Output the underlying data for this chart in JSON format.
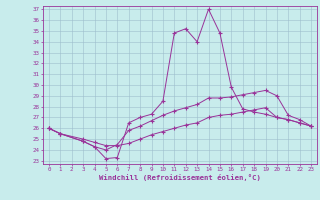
{
  "xlabel": "Windchill (Refroidissement éolien,°C)",
  "background_color": "#c8ecec",
  "grid_color": "#9ebecc",
  "line_color": "#993399",
  "xmin": 0,
  "xmax": 23,
  "ymin": 23,
  "ymax": 37,
  "line1_x": [
    0,
    1,
    3,
    4,
    5,
    6,
    7,
    8,
    9,
    10,
    11,
    12,
    13,
    14,
    15,
    16,
    17,
    18,
    19,
    20,
    21,
    22,
    23
  ],
  "line1_y": [
    26.0,
    25.5,
    24.8,
    24.3,
    23.2,
    23.3,
    26.5,
    27.0,
    27.3,
    28.5,
    34.8,
    35.2,
    34.0,
    37.0,
    34.8,
    29.8,
    27.8,
    27.5,
    27.3,
    27.0,
    26.8,
    26.5,
    26.2
  ],
  "line2_x": [
    0,
    1,
    3,
    4,
    5,
    6,
    7,
    8,
    9,
    10,
    11,
    12,
    13,
    14,
    15,
    16,
    17,
    18,
    19,
    20,
    21,
    22,
    23
  ],
  "line2_y": [
    26.0,
    25.5,
    24.8,
    24.3,
    24.0,
    24.5,
    25.8,
    26.2,
    26.7,
    27.2,
    27.6,
    27.9,
    28.2,
    28.8,
    28.8,
    28.9,
    29.1,
    29.3,
    29.5,
    29.0,
    27.2,
    26.8,
    26.2
  ],
  "line3_x": [
    0,
    1,
    3,
    4,
    5,
    6,
    7,
    8,
    9,
    10,
    11,
    12,
    13,
    14,
    15,
    16,
    17,
    18,
    19,
    20,
    21,
    22,
    23
  ],
  "line3_y": [
    26.0,
    25.5,
    25.0,
    24.7,
    24.4,
    24.4,
    24.6,
    25.0,
    25.4,
    25.7,
    26.0,
    26.3,
    26.5,
    27.0,
    27.2,
    27.3,
    27.5,
    27.7,
    27.9,
    27.0,
    26.8,
    26.5,
    26.2
  ]
}
